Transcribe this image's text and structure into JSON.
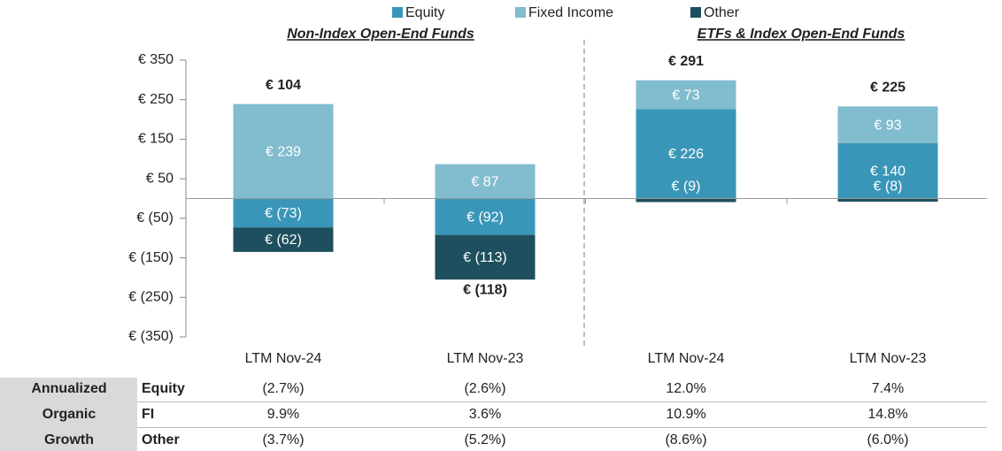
{
  "chart_data": {
    "type": "bar",
    "stacked": true,
    "categories": [
      "LTM Nov-24",
      "LTM Nov-23",
      "LTM Nov-24",
      "LTM Nov-23"
    ],
    "groups": [
      "Non-Index Open-End Funds",
      "ETFs & Index Open-End Funds"
    ],
    "series": [
      {
        "name": "Equity",
        "color": "#3a96b8",
        "values": [
          -73,
          -92,
          226,
          140
        ],
        "value_labels": [
          "€ (73)",
          "€ (92)",
          "€ 226",
          "€ 140"
        ]
      },
      {
        "name": "Fixed Income",
        "color": "#82bccf",
        "values": [
          239,
          87,
          73,
          93
        ],
        "value_labels": [
          "€ 239",
          "€ 87",
          "€ 73",
          "€ 93"
        ]
      },
      {
        "name": "Other",
        "color": "#1e4f5e",
        "values": [
          -62,
          -113,
          -9,
          -8
        ],
        "value_labels": [
          "€ (62)",
          "€ (113)",
          "€ (9)",
          "€ (8)"
        ]
      }
    ],
    "totals": {
      "values": [
        104,
        -118,
        291,
        225
      ],
      "value_labels": [
        "€ 104",
        "€ (118)",
        "€ 291",
        "€ 225"
      ]
    },
    "ylim": [
      -350,
      350
    ],
    "yticks": [
      {
        "value": 350,
        "label": "€ 350"
      },
      {
        "value": 250,
        "label": "€ 250"
      },
      {
        "value": 150,
        "label": "€ 150"
      },
      {
        "value": 50,
        "label": "€ 50"
      },
      {
        "value": -50,
        "label": "€ (50)"
      },
      {
        "value": -150,
        "label": "€ (150)"
      },
      {
        "value": -250,
        "label": "€ (250)"
      },
      {
        "value": -350,
        "label": "€ (350)"
      }
    ]
  },
  "table": {
    "header": [
      "Annualized",
      "Organic",
      "Growth"
    ],
    "rows": [
      {
        "label": "Equity",
        "values": [
          "(2.7%)",
          "(2.6%)",
          "12.0%",
          "7.4%"
        ]
      },
      {
        "label": "FI",
        "values": [
          "9.9%",
          "3.6%",
          "10.9%",
          "14.8%"
        ]
      },
      {
        "label": "Other",
        "values": [
          "(3.7%)",
          "(5.2%)",
          "(8.6%)",
          "(6.0%)"
        ]
      }
    ]
  }
}
